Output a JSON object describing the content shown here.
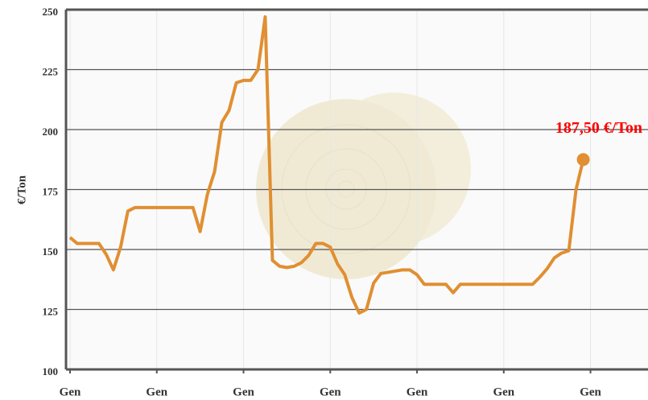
{
  "chart_data": {
    "type": "line",
    "y_label": "€/Ton",
    "color": "#e08f32",
    "label_color": "#ff0000",
    "categories": [
      "Gen",
      null,
      null,
      null,
      null,
      null,
      null,
      null,
      null,
      null,
      null,
      null,
      "Gen",
      null,
      null,
      null,
      null,
      null,
      null,
      null,
      null,
      null,
      null,
      null,
      "Gen",
      null,
      null,
      null,
      null,
      null,
      null,
      null,
      null,
      null,
      null,
      null,
      "Gen",
      null,
      null,
      null,
      null,
      null,
      null,
      null,
      null,
      null,
      null,
      null,
      "Gen",
      null,
      null,
      null,
      null,
      null,
      null,
      null,
      null,
      null,
      null,
      null,
      "Gen",
      null,
      null,
      null,
      null,
      null,
      null,
      null,
      null,
      null,
      null,
      null,
      "Gen"
    ],
    "values": [
      155,
      152.5,
      152.5,
      152.5,
      152.5,
      148,
      141.5,
      151,
      166,
      167.5,
      167.5,
      167.5,
      167.5,
      167.5,
      167.5,
      167.5,
      167.5,
      167.5,
      157.5,
      173,
      182.5,
      203,
      208,
      219.5,
      220.5,
      220.5,
      225,
      247,
      145.5,
      143,
      142.5,
      143,
      144.5,
      147.5,
      152.5,
      152.5,
      151,
      144,
      139.5,
      130,
      123.5,
      125,
      136,
      140,
      140.5,
      141,
      141.5,
      141.5,
      139.5,
      135.5,
      135.5,
      135.5,
      135.5,
      132,
      135.5,
      135.5,
      135.5,
      135.5,
      135.5,
      135.5,
      135.5,
      135.5,
      135.5,
      135.5,
      135.5,
      138.5,
      142,
      146.5,
      148.5,
      149.5,
      175,
      187.5,
      null
    ],
    "value_labels": [
      null,
      null,
      null,
      null,
      null,
      null,
      null,
      null,
      null,
      null,
      null,
      null,
      null,
      null,
      null,
      null,
      null,
      null,
      null,
      null,
      null,
      null,
      null,
      null,
      null,
      null,
      null,
      null,
      null,
      null,
      null,
      null,
      null,
      null,
      null,
      null,
      null,
      null,
      null,
      null,
      null,
      null,
      null,
      null,
      null,
      null,
      null,
      null,
      null,
      null,
      null,
      null,
      null,
      null,
      null,
      null,
      null,
      null,
      null,
      null,
      null,
      null,
      null,
      null,
      null,
      null,
      null,
      null,
      null,
      null,
      null,
      "187,50 €/Ton",
      null
    ],
    "ylim": [
      100,
      250
    ],
    "yticks": [
      100,
      125,
      150,
      175,
      200,
      225,
      250
    ],
    "grid": true
  }
}
